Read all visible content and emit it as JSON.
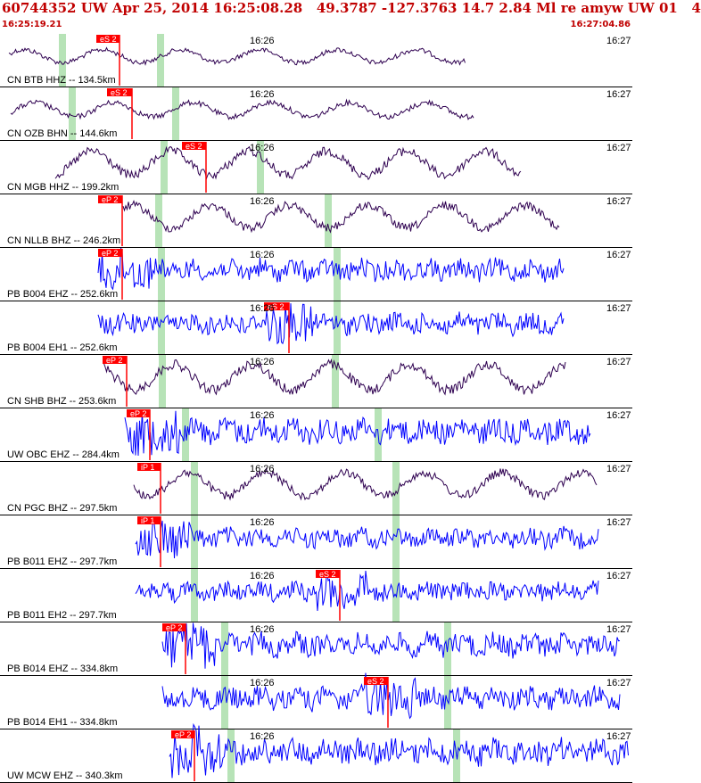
{
  "header": {
    "title": "60744352 UW Apr 25, 2014 16:25:08.28   49.3787 -127.3763 14.7 2.84 Ml re amyw UW 01   4",
    "start_time": "16:25:19.21",
    "end_time": "16:27:04.86"
  },
  "colors": {
    "header_text": "#c00000",
    "broadband": "#2e0050",
    "short_period": "#0000ff",
    "pick": "#ff0000",
    "window_band": "#b7e3b7"
  },
  "tick_labels": {
    "mid": "16:26",
    "right": "16:27"
  },
  "traces": [
    {
      "label": "CN BTB HHZ -- 134.5km",
      "type": "bb",
      "picks": [
        "eS 2"
      ]
    },
    {
      "label": "CN OZB BHN -- 144.6km",
      "type": "bb",
      "picks": [
        "eS 2"
      ]
    },
    {
      "label": "CN MGB HHZ -- 199.2km",
      "type": "bb",
      "picks": [
        "eS 2"
      ]
    },
    {
      "label": "CN NLLB BHZ -- 246.2km",
      "type": "bb",
      "picks": [
        "eP 2"
      ]
    },
    {
      "label": "PB B004 EHZ -- 252.6km",
      "type": "sp",
      "picks": [
        "eP 2"
      ]
    },
    {
      "label": "PB B004 EH1 -- 252.6km",
      "type": "sp",
      "picks": [
        "eS 2"
      ]
    },
    {
      "label": "CN SHB BHZ -- 253.6km",
      "type": "bb",
      "picks": [
        "eP 2"
      ]
    },
    {
      "label": "UW OBC EHZ -- 284.4km",
      "type": "sp",
      "picks": [
        "eP 2"
      ]
    },
    {
      "label": "CN PGC BHZ -- 297.5km",
      "type": "bb",
      "picks": [
        "iP 1"
      ]
    },
    {
      "label": "PB B011 EHZ -- 297.7km",
      "type": "sp",
      "picks": [
        "iP 1"
      ]
    },
    {
      "label": "PB B011 EH2 -- 297.7km",
      "type": "sp",
      "picks": [
        "eS 2"
      ]
    },
    {
      "label": "PB B014 EHZ -- 334.8km",
      "type": "sp",
      "picks": [
        "eP 2"
      ]
    },
    {
      "label": "PB B014 EH1 -- 334.8km",
      "type": "sp",
      "picks": [
        "eS 2"
      ]
    },
    {
      "label": "UW MCW EHZ -- 340.3km",
      "type": "sp",
      "picks": [
        "eP 2"
      ]
    }
  ]
}
